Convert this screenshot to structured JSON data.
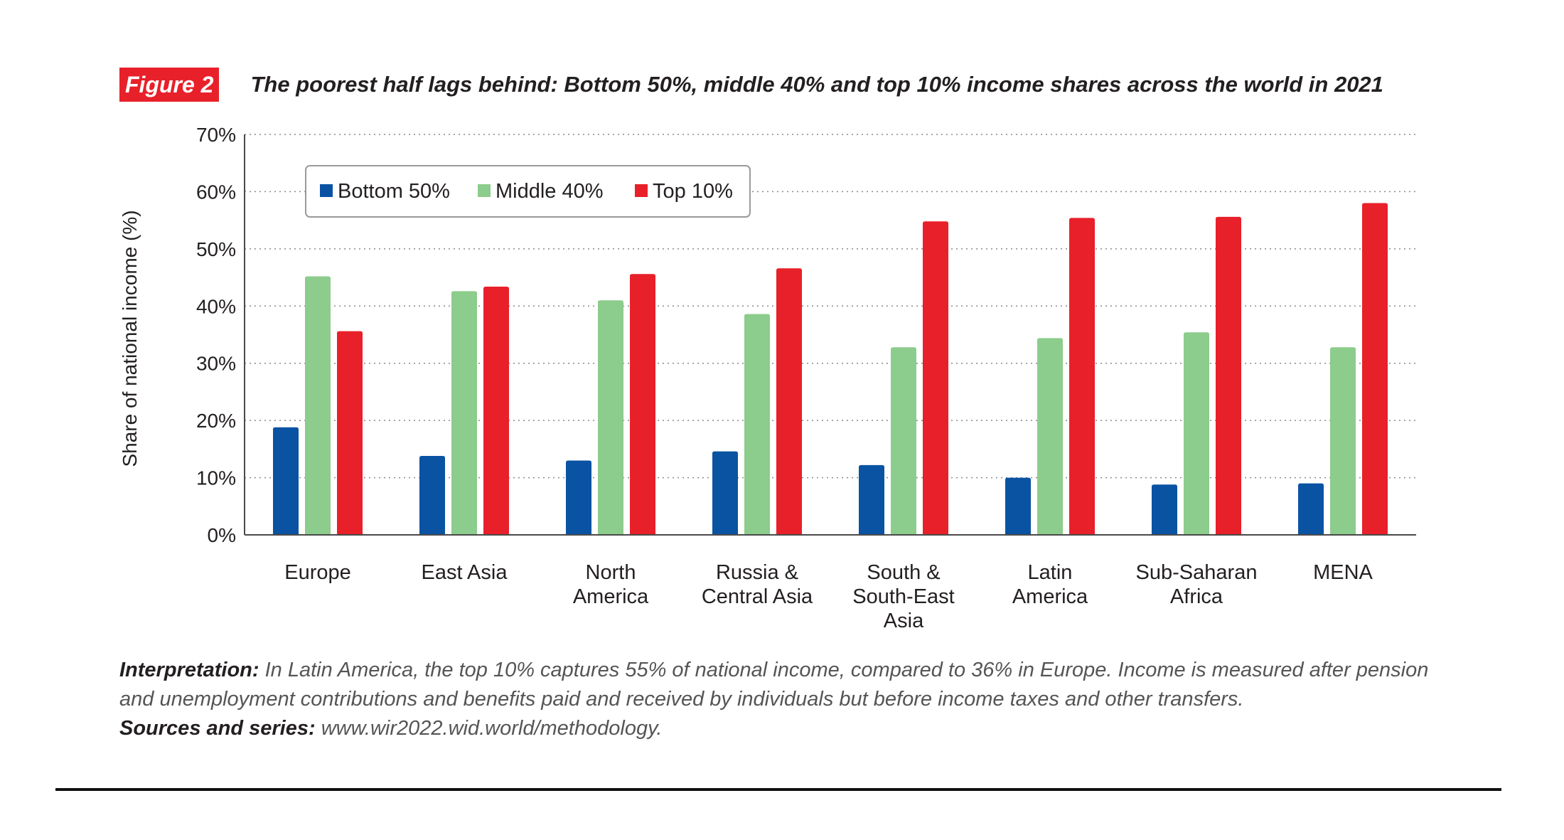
{
  "figure": {
    "label": "Figure 2",
    "title": "The poorest half lags behind: Bottom 50%, middle 40% and top 10% income shares across the world in 2021"
  },
  "chart_data": {
    "type": "bar",
    "ylabel": "Share of national income (%)",
    "xlabel": "",
    "ylim": [
      0,
      70
    ],
    "yticks": [
      0,
      10,
      20,
      30,
      40,
      50,
      60,
      70
    ],
    "ytick_labels": [
      "0%",
      "10%",
      "20%",
      "30%",
      "40%",
      "50%",
      "60%",
      "70%"
    ],
    "grid": "horizontal dotted",
    "legend_position": "top-left",
    "categories": [
      [
        "Europe"
      ],
      [
        "East Asia"
      ],
      [
        "North",
        "America"
      ],
      [
        "Russia &",
        "Central Asia"
      ],
      [
        "South &",
        "South-East",
        "Asia"
      ],
      [
        "Latin",
        "America"
      ],
      [
        "Sub-Saharan",
        "Africa"
      ],
      [
        "MENA"
      ]
    ],
    "series": [
      {
        "name": "Bottom 50%",
        "color": "#0a53a3",
        "values": [
          18.8,
          13.8,
          13.0,
          14.6,
          12.2,
          10.0,
          8.8,
          9.0
        ]
      },
      {
        "name": "Middle 40%",
        "color": "#8ccc8c",
        "values": [
          45.2,
          42.6,
          41.0,
          38.6,
          32.8,
          34.4,
          35.4,
          32.8
        ]
      },
      {
        "name": "Top 10%",
        "color": "#e8202a",
        "values": [
          35.6,
          43.4,
          45.6,
          46.6,
          54.8,
          55.4,
          55.6,
          58.0
        ]
      }
    ]
  },
  "notes": {
    "interpretation_label": "Interpretation:",
    "interpretation_text": " In Latin America, the top 10% captures 55% of national income, compared to 36% in Europe. Income is measured after pension and unemployment contributions and benefits paid and received by individuals but before income taxes and other transfers.",
    "sources_label": "Sources and series:",
    "sources_text": " www.wir2022.wid.world/methodology."
  },
  "colors": {
    "brand_red": "#e8202a",
    "bottom50": "#0a53a3",
    "middle40": "#8ccc8c",
    "top10": "#e8202a"
  }
}
